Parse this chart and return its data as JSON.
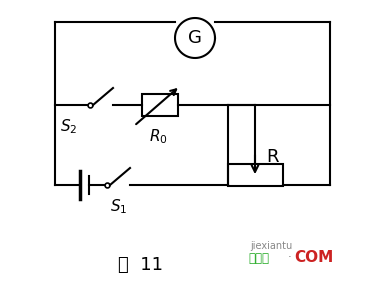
{
  "bg_color": "#ffffff",
  "line_color": "#000000",
  "title": "图  11",
  "wm_green": "#22aa22",
  "wm_red": "#cc2222",
  "wm_gray": "#888888",
  "wm_text1": "接线图",
  "wm_text2": "COM",
  "wm_dot": "·",
  "wm_sub": "jiexiantu"
}
